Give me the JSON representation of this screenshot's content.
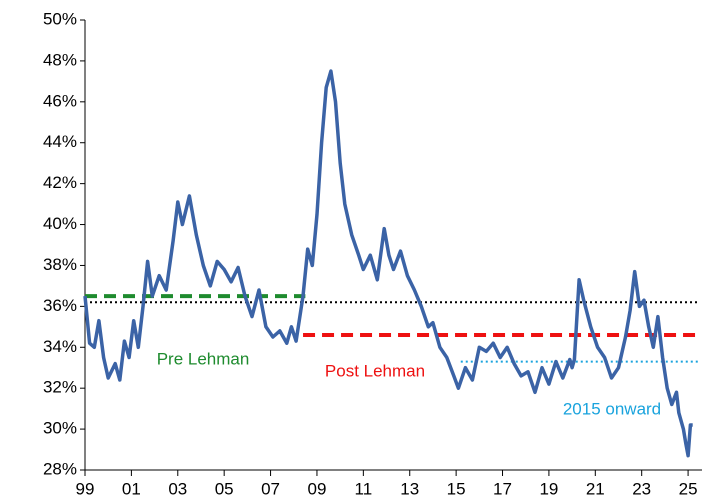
{
  "chart_data": {
    "type": "line",
    "xlim": [
      1999,
      2025.6
    ],
    "xticks": [
      {
        "value": 1999,
        "label": "99"
      },
      {
        "value": 2001,
        "label": "01"
      },
      {
        "value": 2003,
        "label": "03"
      },
      {
        "value": 2005,
        "label": "05"
      },
      {
        "value": 2007,
        "label": "07"
      },
      {
        "value": 2009,
        "label": "09"
      },
      {
        "value": 2011,
        "label": "11"
      },
      {
        "value": 2013,
        "label": "13"
      },
      {
        "value": 2015,
        "label": "15"
      },
      {
        "value": 2017,
        "label": "17"
      },
      {
        "value": 2019,
        "label": "19"
      },
      {
        "value": 2021,
        "label": "21"
      },
      {
        "value": 2023,
        "label": "23"
      },
      {
        "value": 2025,
        "label": "25"
      }
    ],
    "ylim": [
      28,
      50
    ],
    "yticks": [
      {
        "value": 28,
        "label": "28%"
      },
      {
        "value": 30,
        "label": "30%"
      },
      {
        "value": 32,
        "label": "32%"
      },
      {
        "value": 34,
        "label": "34%"
      },
      {
        "value": 36,
        "label": "36%"
      },
      {
        "value": 38,
        "label": "38%"
      },
      {
        "value": 40,
        "label": "40%"
      },
      {
        "value": 42,
        "label": "42%"
      },
      {
        "value": 44,
        "label": "44%"
      },
      {
        "value": 46,
        "label": "46%"
      },
      {
        "value": 48,
        "label": "48%"
      },
      {
        "value": 50,
        "label": "50%"
      }
    ],
    "series": [
      {
        "color": "#3b63a6",
        "x": [
          1999.0,
          1999.2,
          1999.4,
          1999.6,
          1999.8,
          2000.0,
          2000.3,
          2000.5,
          2000.7,
          2000.9,
          2001.1,
          2001.3,
          2001.5,
          2001.7,
          2001.9,
          2002.2,
          2002.5,
          2002.8,
          2003.0,
          2003.2,
          2003.5,
          2003.8,
          2004.1,
          2004.4,
          2004.7,
          2005.0,
          2005.3,
          2005.6,
          2005.9,
          2006.2,
          2006.5,
          2006.8,
          2007.1,
          2007.4,
          2007.7,
          2007.9,
          2008.1,
          2008.4,
          2008.6,
          2008.8,
          2009.0,
          2009.2,
          2009.4,
          2009.6,
          2009.8,
          2010.0,
          2010.2,
          2010.5,
          2010.8,
          2011.0,
          2011.3,
          2011.6,
          2011.9,
          2012.1,
          2012.3,
          2012.6,
          2012.9,
          2013.2,
          2013.5,
          2013.8,
          2014.0,
          2014.3,
          2014.6,
          2014.9,
          2015.1,
          2015.4,
          2015.7,
          2016.0,
          2016.3,
          2016.6,
          2016.9,
          2017.2,
          2017.5,
          2017.8,
          2018.1,
          2018.4,
          2018.7,
          2019.0,
          2019.3,
          2019.6,
          2019.9,
          2020.0,
          2020.1,
          2020.3,
          2020.5,
          2020.8,
          2021.1,
          2021.4,
          2021.7,
          2022.0,
          2022.3,
          2022.5,
          2022.7,
          2022.9,
          2023.1,
          2023.3,
          2023.5,
          2023.7,
          2023.9,
          2024.1,
          2024.3,
          2024.5,
          2024.6,
          2024.8,
          2024.9,
          2025.0,
          2025.1,
          2025.2
        ],
        "values": [
          36.5,
          34.2,
          34.0,
          35.3,
          33.5,
          32.5,
          33.2,
          32.4,
          34.3,
          33.5,
          35.3,
          34.0,
          36.0,
          38.2,
          36.5,
          37.5,
          36.8,
          39.2,
          41.1,
          40.0,
          41.4,
          39.5,
          38.0,
          37.0,
          38.2,
          37.8,
          37.2,
          37.9,
          36.5,
          35.5,
          36.8,
          35.0,
          34.5,
          34.8,
          34.2,
          35.0,
          34.3,
          36.5,
          38.8,
          38.0,
          40.5,
          44.0,
          46.7,
          47.5,
          46.0,
          43.0,
          41.0,
          39.5,
          38.5,
          37.8,
          38.5,
          37.3,
          39.8,
          38.5,
          37.8,
          38.7,
          37.5,
          36.8,
          36.0,
          35.0,
          35.2,
          34.0,
          33.5,
          32.6,
          32.0,
          33.0,
          32.4,
          34.0,
          33.8,
          34.2,
          33.5,
          34.0,
          33.2,
          32.6,
          32.8,
          31.8,
          33.0,
          32.2,
          33.3,
          32.5,
          33.4,
          33.0,
          33.4,
          37.3,
          36.3,
          35.0,
          34.0,
          33.5,
          32.5,
          33.0,
          34.5,
          35.8,
          37.7,
          36.0,
          36.3,
          35.0,
          34.0,
          35.5,
          33.5,
          32.0,
          31.2,
          31.8,
          30.8,
          30.0,
          29.3,
          28.7,
          30.2,
          30.2
        ]
      }
    ],
    "reference_lines": [
      {
        "value": 36.2,
        "x": [
          1999,
          2025.5
        ],
        "color": "#000000",
        "style": "dotted"
      },
      {
        "value": 36.5,
        "x": [
          1999,
          2008.5
        ],
        "color": "#1e8b2e",
        "style": "dashed",
        "label": "Pre Lehman"
      },
      {
        "value": 34.6,
        "x": [
          2008.4,
          2025.5
        ],
        "color": "#ee1111",
        "style": "dashed",
        "label": "Post Lehman"
      },
      {
        "value": 33.3,
        "x": [
          2015.2,
          2025.5
        ],
        "color": "#19a3dd",
        "style": "dotted",
        "label": "2015 onward"
      }
    ]
  }
}
